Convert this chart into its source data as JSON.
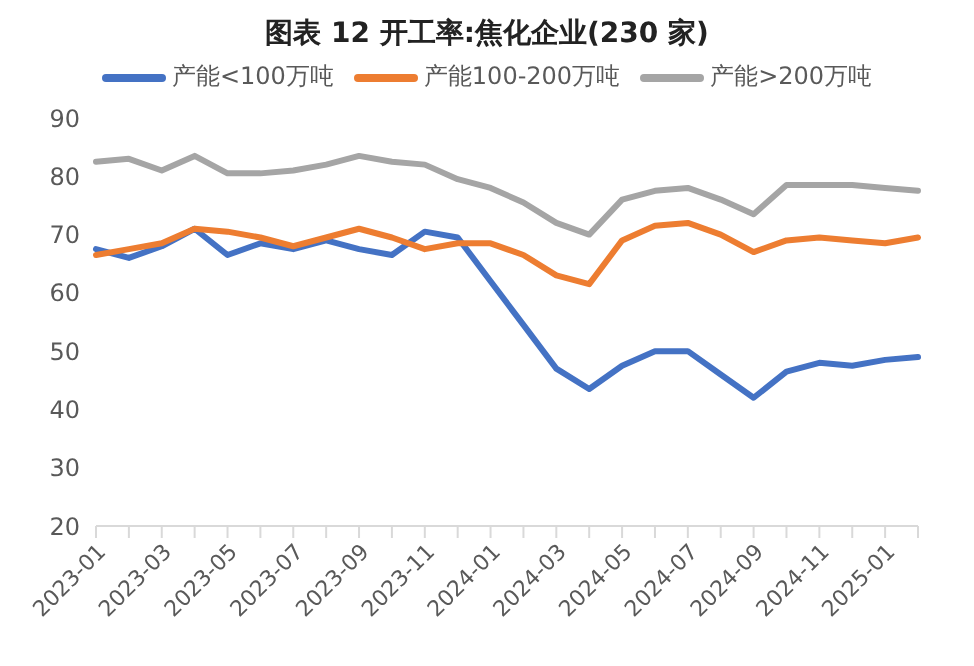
{
  "chart_data": {
    "type": "line",
    "title": "图表 12 开工率:焦化企业(230 家)",
    "categories": [
      "2023-01",
      null,
      "2023-03",
      null,
      "2023-05",
      null,
      "2023-07",
      null,
      "2023-09",
      null,
      "2023-11",
      null,
      "2024-01",
      null,
      "2024-03",
      null,
      "2024-05",
      null,
      "2024-07",
      null,
      "2024-09",
      null,
      "2024-11",
      null,
      "2025-01",
      null
    ],
    "series": [
      {
        "name": "产能<100万吨",
        "color": "#4472c4",
        "values": [
          67.5,
          66,
          68,
          71,
          66.5,
          68.5,
          67.5,
          69,
          67.5,
          66.5,
          70.5,
          69.5,
          62,
          54.5,
          47,
          43.5,
          47.5,
          50,
          50,
          46,
          42,
          46.5,
          48,
          47.5,
          48.5,
          49
        ]
      },
      {
        "name": "产能100-200万吨",
        "color": "#ed7d31",
        "values": [
          66.5,
          67.5,
          68.5,
          71,
          70.5,
          69.5,
          68,
          69.5,
          71,
          69.5,
          67.5,
          68.5,
          68.5,
          66.5,
          63,
          61.5,
          69,
          71.5,
          72,
          70,
          67,
          69,
          69.5,
          69,
          68.5,
          69.5
        ]
      },
      {
        "name": "产能>200万吨",
        "color": "#a5a5a5",
        "values": [
          82.5,
          83,
          81,
          83.5,
          80.5,
          80.5,
          81,
          82,
          83.5,
          82.5,
          82,
          79.5,
          78,
          75.5,
          72,
          70,
          76,
          77.5,
          78,
          76,
          73.5,
          78.5,
          78.5,
          78.5,
          78,
          77.5
        ]
      }
    ],
    "ylim": [
      20,
      90
    ],
    "yticks": [
      20,
      30,
      40,
      50,
      60,
      70,
      80,
      90
    ],
    "grid": false,
    "legend": "top",
    "marker": "none",
    "line_style": "solid"
  }
}
